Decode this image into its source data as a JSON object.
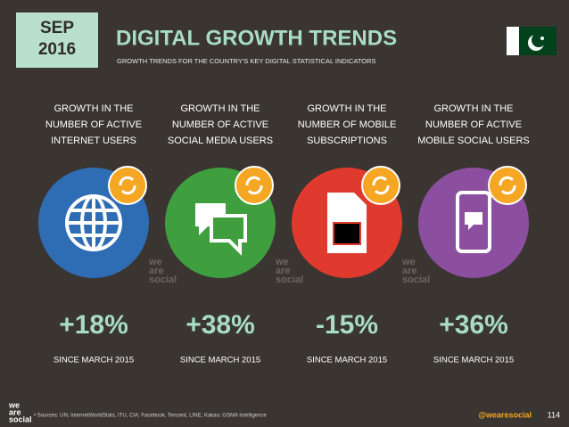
{
  "header": {
    "date": {
      "month": "SEP",
      "year": "2016"
    },
    "title": "DIGITAL GROWTH TRENDS",
    "subtitle": "GROWTH TRENDS FOR THE COUNTRY'S KEY DIGITAL STATISTICAL INDICATORS"
  },
  "columns": [
    {
      "label": [
        "GROWTH IN THE",
        "NUMBER OF ACTIVE",
        "INTERNET USERS"
      ],
      "value": "+18%",
      "since": "SINCE MARCH 2015"
    },
    {
      "label": [
        "GROWTH IN THE",
        "NUMBER OF ACTIVE",
        "SOCIAL MEDIA USERS"
      ],
      "value": "+38%",
      "since": "SINCE MARCH 2015"
    },
    {
      "label": [
        "GROWTH IN THE",
        "NUMBER OF MOBILE",
        "SUBSCRIPTIONS"
      ],
      "value": "-15%",
      "since": "SINCE MARCH 2015"
    },
    {
      "label": [
        "GROWTH IN THE",
        "NUMBER OF ACTIVE",
        "MOBILE SOCIAL USERS"
      ],
      "value": "+36%",
      "since": "SINCE MARCH 2015"
    }
  ],
  "watermark": [
    "we",
    "are",
    "social"
  ],
  "footer": {
    "logo": [
      "we",
      "are",
      "social"
    ],
    "sources": "• Sources: UN; InternetWorldStats, ITU, CIA; Facebook, Tencent, LINE, Kakao; GSMA Intelligence",
    "handle": "@wearesocial",
    "page": "114"
  }
}
